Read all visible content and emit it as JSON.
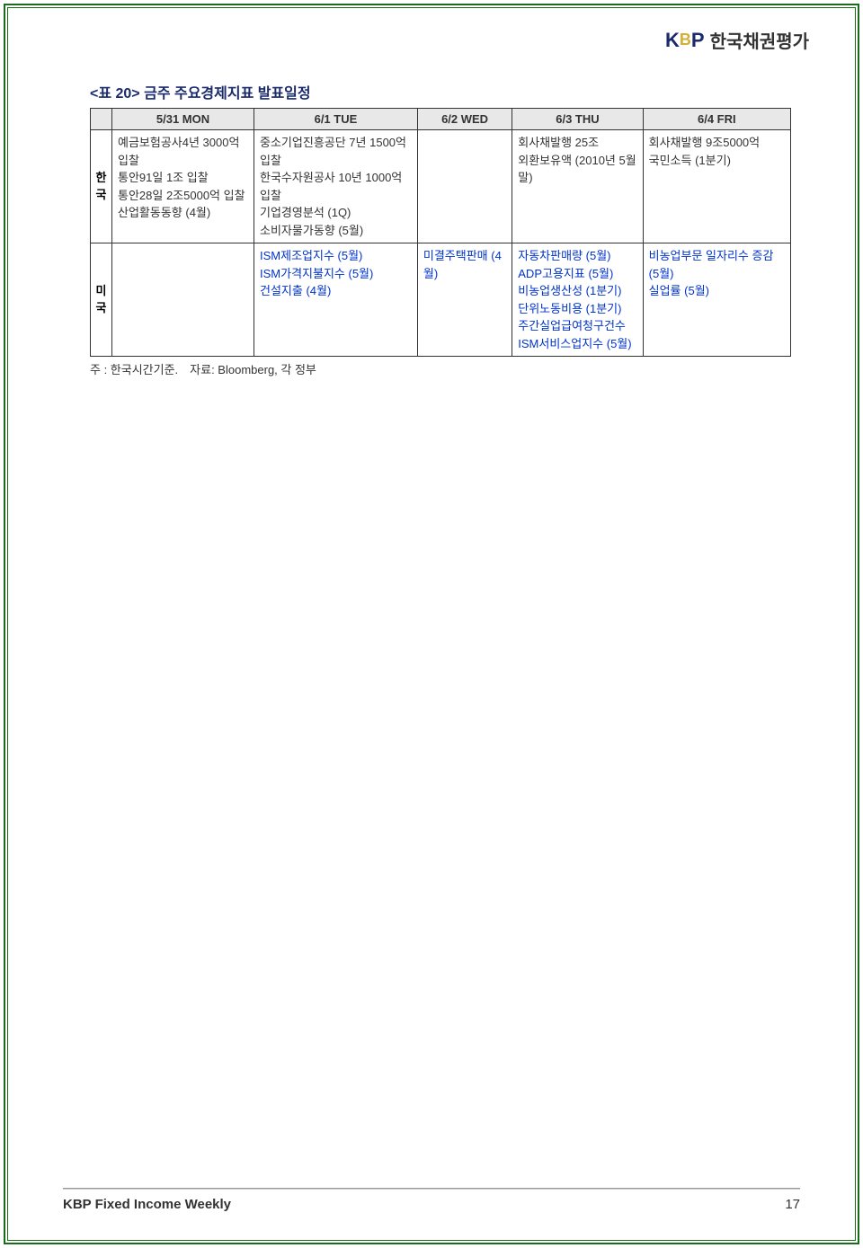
{
  "header": {
    "logo_k": "K",
    "logo_b": "B",
    "logo_p": "P",
    "company_name": "한국채권평가"
  },
  "table": {
    "title": "<표 20> 금주 주요경제지표 발표일정",
    "columns": [
      "",
      "5/31 MON",
      "6/1 TUE",
      "6/2 WED",
      "6/3 THU",
      "6/4 FRI"
    ],
    "rows": [
      {
        "label": "한\n국",
        "cells": [
          "예금보험공사4년 3000억 입찰\n통안91일 1조 입찰\n통안28일 2조5000억 입찰\n산업활동동향 (4월)",
          "중소기업진흥공단 7년 1500억 입찰\n한국수자원공사 10년 1000억 입찰\n기업경영분석 (1Q)\n소비자물가동향 (5월)",
          "",
          "회사채발행 25조\n외환보유액 (2010년 5월말)",
          "회사채발행 9조5000억\n국민소득 (1분기)"
        ],
        "blue": [
          false,
          false,
          false,
          false,
          false
        ]
      },
      {
        "label": "미\n국",
        "cells": [
          "",
          "ISM제조업지수 (5월)\nISM가격지불지수 (5월)\n건설지출 (4월)",
          "미결주택판매 (4월)",
          "자동차판매량 (5월)\nADP고용지표 (5월)\n비농업생산성 (1분기)\n단위노동비용 (1분기)\n주간실업급여청구건수\nISM서비스업지수 (5월)",
          "비농업부문 일자리수 증감 (5월)\n실업률 (5월)"
        ],
        "blue": [
          false,
          true,
          true,
          true,
          true
        ]
      }
    ],
    "footnote": "주 : 한국시간기준.　자료: Bloomberg, 각 정부"
  },
  "footer": {
    "title": "KBP Fixed Income Weekly",
    "page": "17"
  },
  "colors": {
    "border_green": "#1a6b1a",
    "title_navy": "#1a2a6b",
    "cell_blue": "#0033cc",
    "header_bg": "#e8e8e8"
  }
}
